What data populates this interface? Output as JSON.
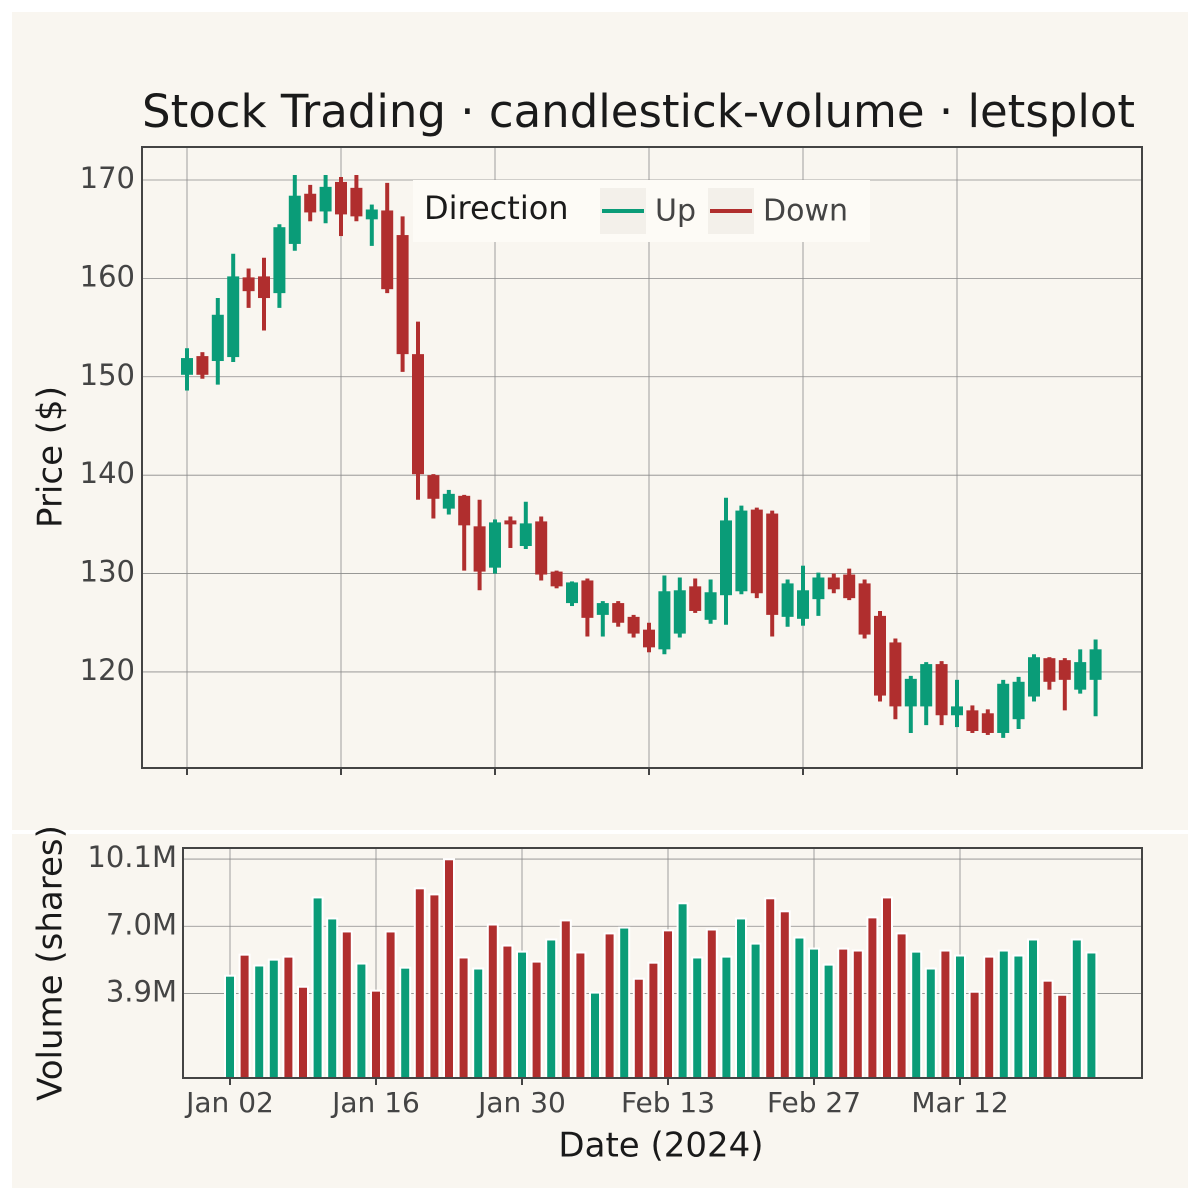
{
  "chart_data": {
    "type": "candlestick",
    "title": "Stock Trading · candlestick-volume · letsplot",
    "xlabel": "Date (2024)",
    "ylabel": "Price ($)",
    "categories": [
      "Jan 02",
      null,
      null,
      null,
      null,
      null,
      null,
      null,
      null,
      null,
      "Jan 16",
      null,
      null,
      null,
      null,
      null,
      null,
      null,
      null,
      null,
      "Jan 30",
      null,
      null,
      null,
      null,
      null,
      null,
      null,
      null,
      null,
      "Feb 13",
      null,
      null,
      null,
      null,
      null,
      null,
      null,
      null,
      null,
      "Feb 27",
      null,
      null,
      null,
      null,
      null,
      null,
      null,
      null,
      null,
      "Mar 12",
      null,
      null,
      null,
      null,
      null,
      null,
      null,
      null,
      null
    ],
    "open": [
      150.2,
      152.1,
      151.6,
      152.0,
      160.1,
      160.2,
      158.5,
      163.5,
      168.6,
      166.8,
      169.8,
      169.2,
      166.0,
      166.9,
      164.4,
      152.3,
      140.0,
      136.6,
      137.9,
      134.8,
      130.6,
      135.4,
      132.8,
      135.3,
      130.2,
      127.0,
      129.3,
      125.8,
      127.0,
      125.6,
      124.3,
      122.3,
      123.9,
      128.7,
      125.3,
      127.8,
      128.2,
      136.5,
      136.1,
      125.6,
      125.4,
      127.4,
      129.6,
      129.9,
      129.0,
      125.7,
      123.0,
      116.5,
      116.5,
      120.8,
      115.6,
      116.1,
      115.8,
      113.8,
      115.2,
      117.5,
      121.4,
      121.2,
      118.2,
      119.2
    ],
    "high": [
      152.9,
      152.5,
      158.0,
      162.5,
      161.0,
      162.1,
      165.5,
      170.5,
      169.5,
      170.5,
      170.3,
      170.5,
      167.5,
      169.7,
      166.3,
      155.6,
      140.1,
      138.5,
      138.0,
      137.5,
      135.5,
      135.8,
      137.3,
      135.8,
      130.3,
      129.2,
      129.5,
      127.2,
      127.2,
      125.8,
      125.0,
      129.8,
      129.6,
      129.5,
      129.4,
      137.7,
      136.9,
      136.7,
      136.4,
      129.4,
      130.8,
      130.1,
      130.0,
      130.5,
      129.4,
      126.2,
      123.4,
      119.6,
      121.0,
      121.1,
      119.2,
      116.6,
      116.2,
      119.2,
      119.5,
      121.8,
      121.5,
      121.4,
      122.3,
      123.3
    ],
    "low": [
      148.6,
      149.8,
      149.2,
      151.5,
      157.0,
      154.7,
      157.0,
      162.8,
      165.8,
      165.6,
      164.3,
      165.8,
      163.3,
      158.5,
      150.5,
      137.5,
      135.6,
      136.0,
      130.3,
      128.3,
      130.0,
      132.6,
      132.5,
      129.3,
      128.5,
      126.7,
      123.6,
      123.6,
      124.6,
      123.5,
      122.0,
      121.8,
      123.5,
      126.0,
      124.9,
      124.8,
      127.9,
      127.5,
      123.6,
      124.6,
      124.7,
      125.7,
      128.0,
      127.3,
      123.4,
      117.0,
      115.2,
      113.8,
      114.6,
      114.6,
      114.4,
      113.8,
      113.6,
      113.3,
      114.2,
      117.0,
      118.2,
      116.1,
      117.8,
      115.5
    ],
    "close": [
      151.9,
      150.2,
      156.3,
      160.2,
      158.7,
      158.0,
      165.2,
      168.4,
      166.7,
      169.3,
      166.5,
      166.3,
      167.0,
      158.9,
      152.3,
      140.1,
      137.6,
      138.1,
      134.9,
      130.2,
      135.2,
      135.0,
      135.1,
      129.9,
      128.7,
      129.1,
      125.5,
      127.0,
      125.0,
      123.9,
      122.5,
      128.2,
      128.3,
      126.2,
      128.1,
      135.4,
      136.4,
      128.0,
      125.8,
      129.0,
      128.3,
      129.6,
      128.4,
      127.5,
      123.8,
      117.6,
      116.5,
      119.3,
      120.8,
      115.6,
      116.5,
      114.0,
      113.8,
      118.8,
      119.0,
      121.5,
      119.0,
      119.2,
      121.0,
      122.3
    ],
    "ylim": [
      110.24,
      173.35
    ],
    "yticks": [
      120,
      130,
      140,
      150,
      160,
      170
    ],
    "grid": true,
    "legend": {
      "title": "Direction",
      "position": "top",
      "entries": [
        {
          "name": "Up",
          "color": "#0a9c78"
        },
        {
          "name": "Down",
          "color": "#b02e2e"
        }
      ]
    },
    "volume": {
      "type": "bar",
      "ylabel": "Volume (shares)",
      "values": [
        4720000,
        5690000,
        5190000,
        5460000,
        5600000,
        4210000,
        8330000,
        7360000,
        6760000,
        5280000,
        4030000,
        6760000,
        5090000,
        8750000,
        8470000,
        10090000,
        5560000,
        5050000,
        7080000,
        6110000,
        5830000,
        5370000,
        6390000,
        7270000,
        5790000,
        3940000,
        6670000,
        6940000,
        4580000,
        5320000,
        6810000,
        8060000,
        5560000,
        6850000,
        5600000,
        7360000,
        6200000,
        8290000,
        7690000,
        6480000,
        5970000,
        5230000,
        5970000,
        5880000,
        7410000,
        8330000,
        6670000,
        5830000,
        5050000,
        5880000,
        5650000,
        3980000,
        5600000,
        5880000,
        5650000,
        6390000,
        4490000,
        3840000,
        6390000,
        5790000
      ],
      "ylim": [
        0,
        10610000
      ],
      "yticks": [
        {
          "value": 3900000,
          "label": "3.9M"
        },
        {
          "value": 7000000,
          "label": "7.0M"
        },
        {
          "value": 10100000,
          "label": "10.1M"
        }
      ]
    }
  }
}
